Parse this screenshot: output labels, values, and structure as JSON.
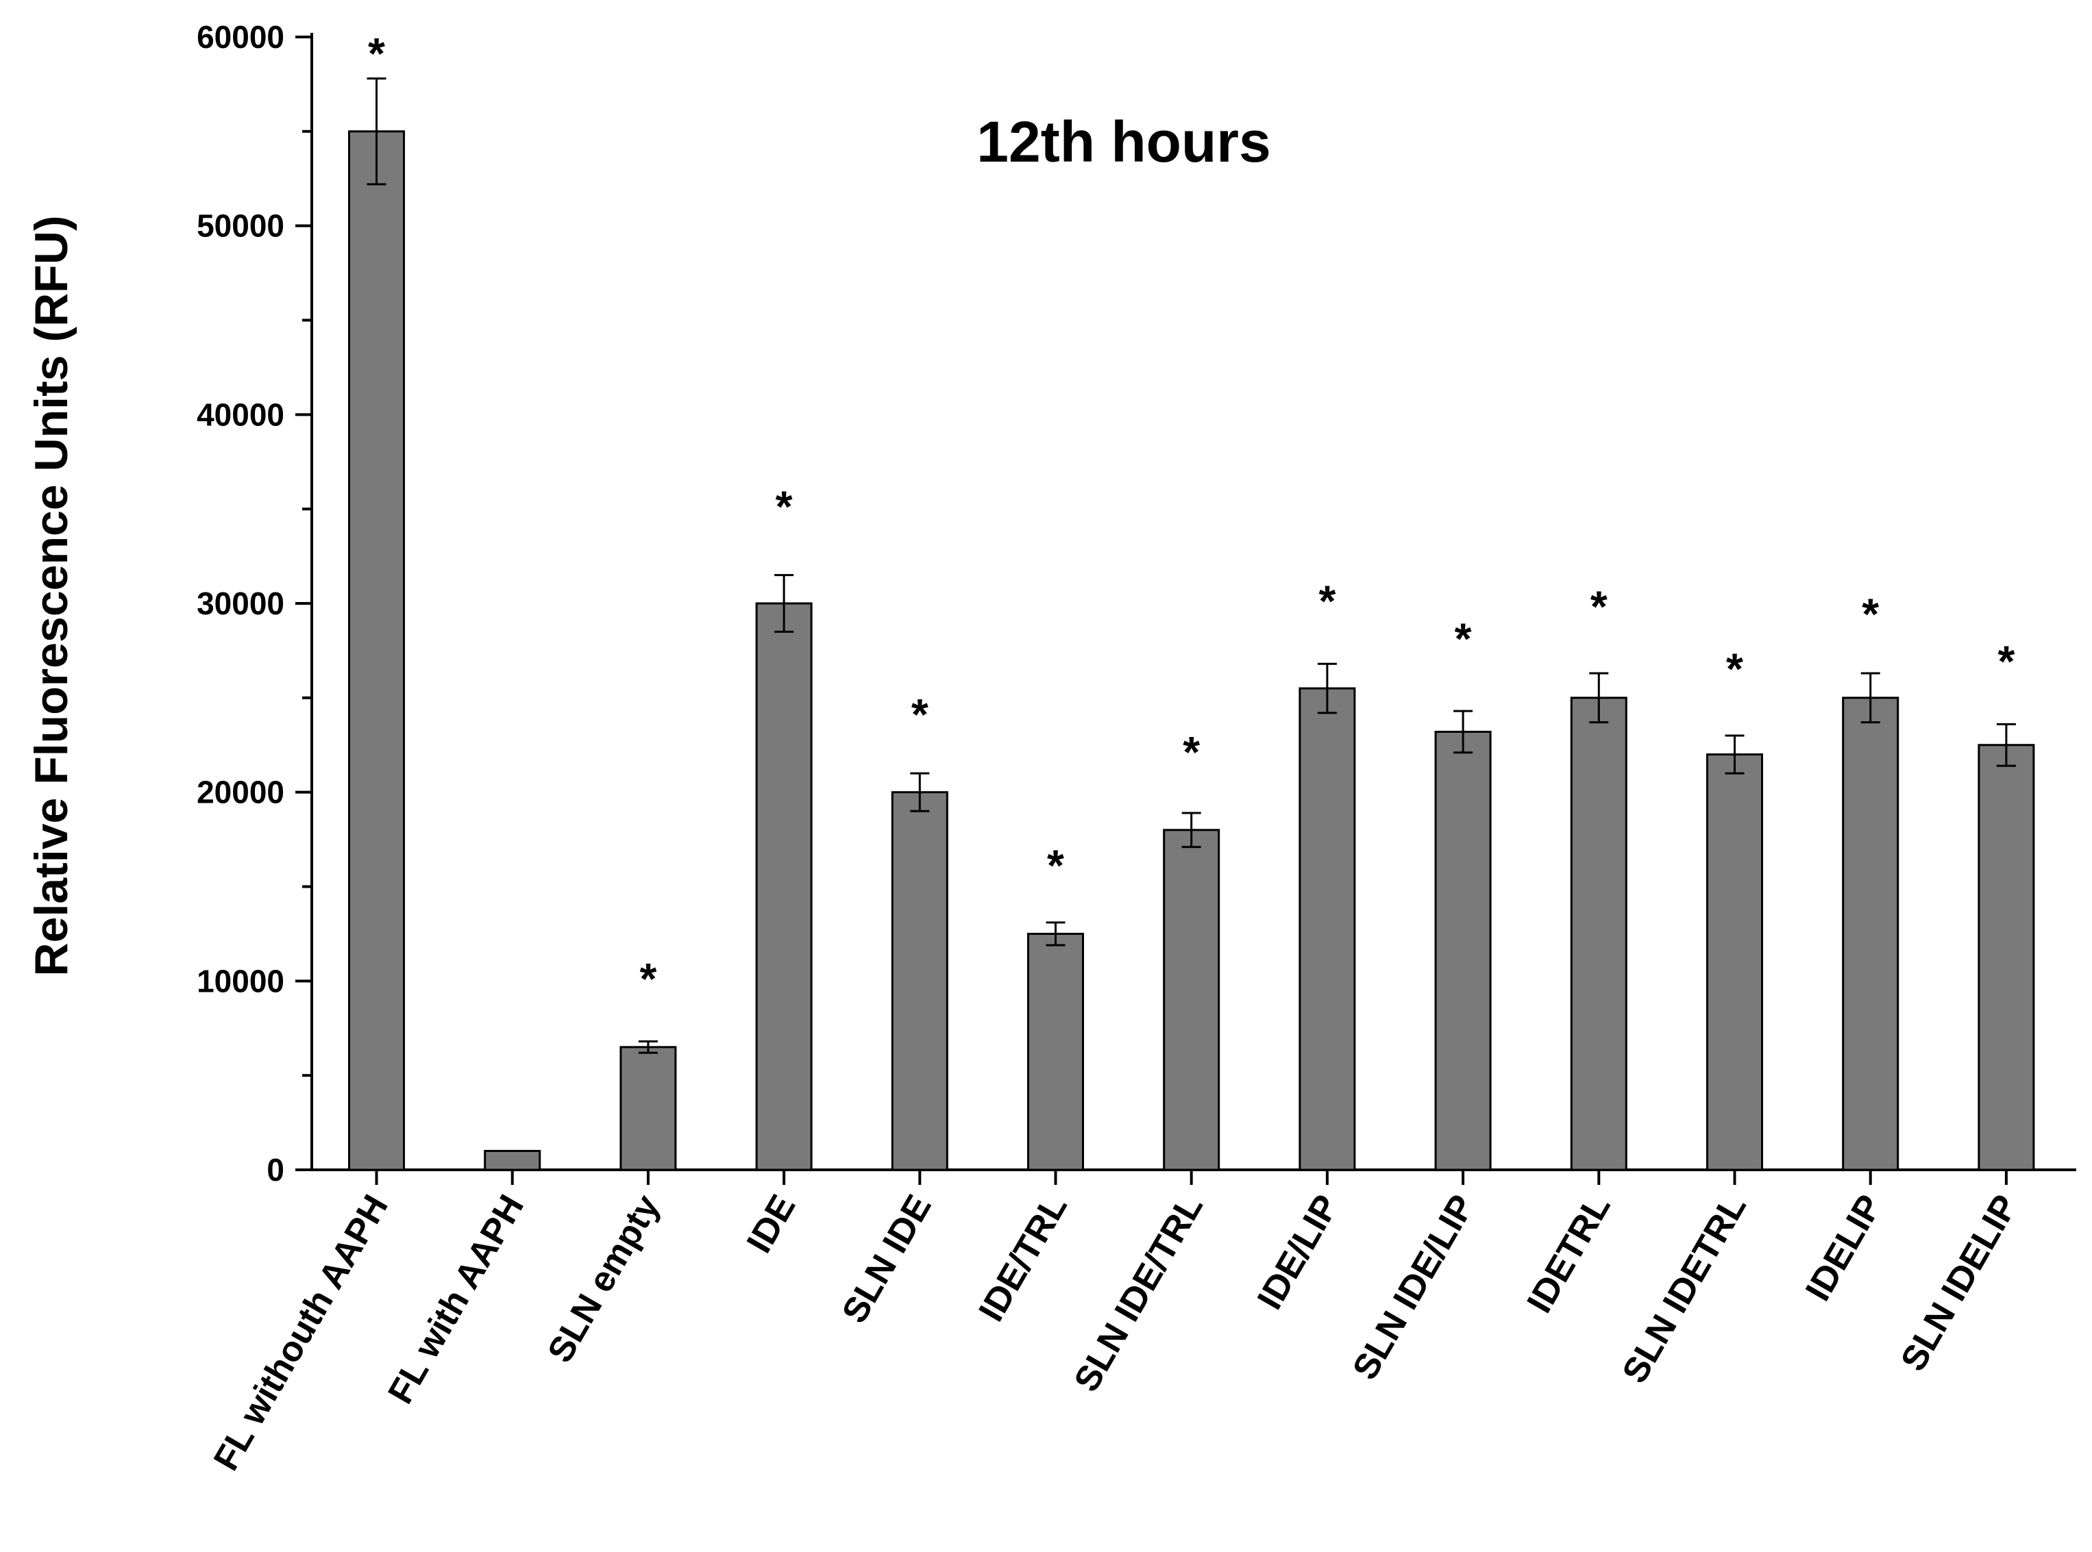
{
  "chart_data": {
    "type": "bar",
    "title": "12th hours",
    "xlabel": "",
    "ylabel": "Relative Fluorescence Units (RFU)",
    "ylim": [
      0,
      60000
    ],
    "yticks": [
      0,
      10000,
      20000,
      30000,
      40000,
      50000,
      60000
    ],
    "grid": false,
    "bar_color": "#7a7a7a",
    "categories": [
      "FL withouth AAPH",
      "FL with AAPH",
      "SLN empty",
      "IDE",
      "SLN IDE",
      "IDE/TRL",
      "SLN IDE/TRL",
      "IDE/LIP",
      "SLN IDE/LIP",
      "IDETRL",
      "SLN IDETRL",
      "IDELIP",
      "SLN IDELIP"
    ],
    "values": [
      55000,
      1000,
      6500,
      30000,
      20000,
      12500,
      18000,
      25500,
      23200,
      25000,
      22000,
      25000,
      22500
    ],
    "errors": [
      2800,
      0,
      300,
      1500,
      1000,
      600,
      900,
      1300,
      1100,
      1300,
      1000,
      1300,
      1100
    ],
    "significance": [
      "*",
      "",
      "*",
      "*",
      "*",
      "*",
      "*",
      "*",
      "*",
      "*",
      "*",
      "*",
      "*"
    ],
    "significance_y": [
      60000,
      null,
      11000,
      36000,
      25000,
      17000,
      23000,
      31000,
      29000,
      30700,
      27400,
      30300,
      27800
    ]
  }
}
